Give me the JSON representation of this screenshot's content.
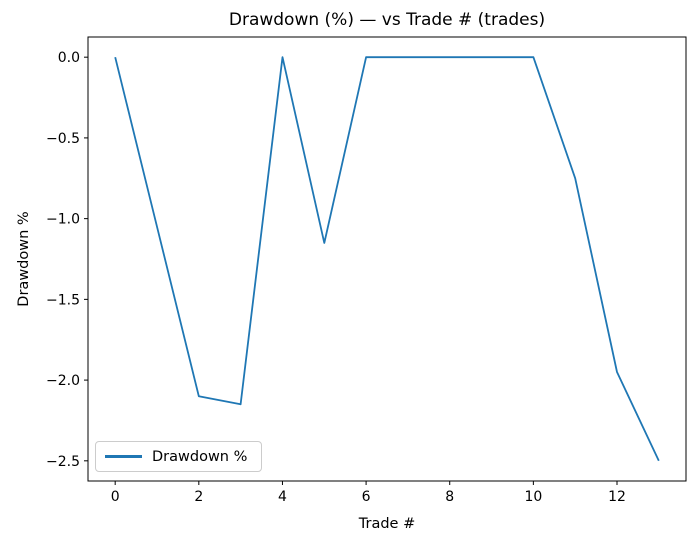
{
  "figure": {
    "background": "#ffffff"
  },
  "chart_data": {
    "type": "line",
    "title": "Drawdown (%) — vs Trade # (trades)",
    "xlabel": "Trade #",
    "ylabel": "Drawdown %",
    "x": [
      0,
      1,
      2,
      3,
      4,
      5,
      6,
      7,
      8,
      9,
      10,
      11,
      12,
      13
    ],
    "series": [
      {
        "name": "Drawdown %",
        "color": "#1f77b4",
        "values": [
          0.0,
          -1.05,
          -2.1,
          -2.15,
          0.0,
          -1.15,
          0.0,
          0.0,
          0.0,
          0.0,
          0.0,
          -0.75,
          -1.95,
          -2.5
        ]
      }
    ],
    "xlim": [
      -0.65,
      13.65
    ],
    "ylim": [
      -2.625,
      0.125
    ],
    "xticks": {
      "values": [
        0,
        2,
        4,
        6,
        8,
        10,
        12
      ],
      "labels": [
        "0",
        "2",
        "4",
        "6",
        "8",
        "10",
        "12"
      ]
    },
    "yticks": {
      "values": [
        0,
        -0.5,
        -1,
        -1.5,
        -2,
        -2.5
      ],
      "labels": [
        "0.0",
        "−0.5",
        "−1.0",
        "−1.5",
        "−2.0",
        "−2.5"
      ]
    },
    "legend": {
      "position": "lower left",
      "entries": [
        {
          "label": "Drawdown %",
          "color": "#1f77b4"
        }
      ]
    },
    "grid": false,
    "axis_color": "#000000"
  }
}
